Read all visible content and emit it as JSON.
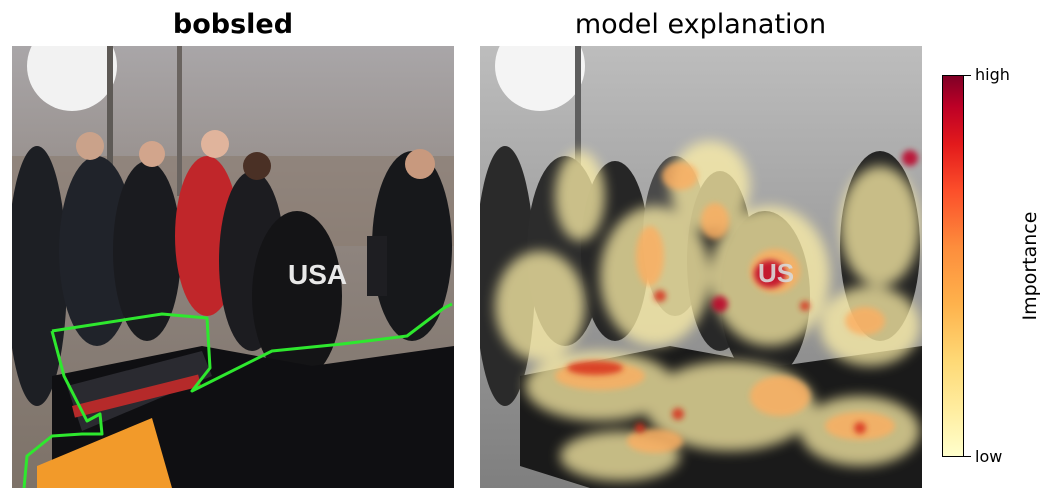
{
  "left_panel": {
    "title": "bobsled",
    "jersey_text": "USA"
  },
  "right_panel": {
    "title": "model explanation",
    "jersey_text": "US"
  },
  "colorbar": {
    "label": "Importance",
    "high_label": "high",
    "low_label": "low",
    "colormap": [
      "#ffffcc",
      "#ffeda0",
      "#fed976",
      "#feb24c",
      "#fd8d3c",
      "#fc4e2a",
      "#e31a1c",
      "#bd0026",
      "#800026"
    ]
  },
  "colors": {
    "segmentation_outline": "#2ee82e",
    "title_text": "#000000"
  }
}
